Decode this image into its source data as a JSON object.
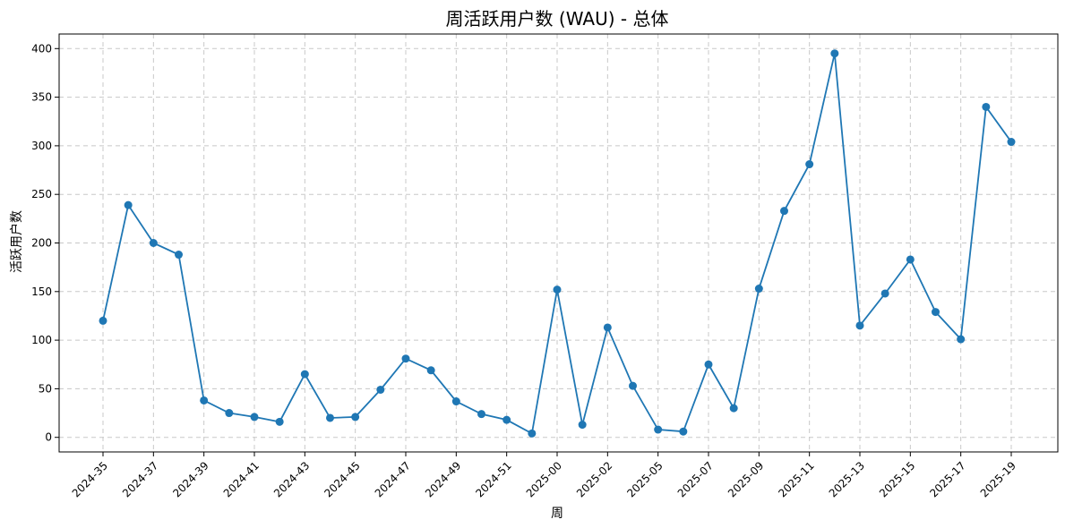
{
  "chart_data": {
    "type": "line",
    "title": "周活跃用户数 (WAU) - 总体",
    "xlabel": "周",
    "ylabel": "活跃用户数",
    "x": [
      "2024-35",
      "2024-36",
      "2024-37",
      "2024-38",
      "2024-39",
      "2024-40",
      "2024-41",
      "2024-42",
      "2024-43",
      "2024-44",
      "2024-45",
      "2024-46",
      "2024-47",
      "2024-48",
      "2024-49",
      "2024-50",
      "2024-51",
      "2024-52",
      "2025-00",
      "2025-01",
      "2025-02",
      "2025-03",
      "2025-05",
      "2025-06",
      "2025-07",
      "2025-08",
      "2025-09",
      "2025-10",
      "2025-11",
      "2025-12",
      "2025-13",
      "2025-14",
      "2025-15",
      "2025-16",
      "2025-17",
      "2025-18",
      "2025-19"
    ],
    "x_ticks": [
      "2024-35",
      "2024-37",
      "2024-39",
      "2024-41",
      "2024-43",
      "2024-45",
      "2024-47",
      "2024-49",
      "2024-51",
      "2025-00",
      "2025-02",
      "2025-05",
      "2025-07",
      "2025-09",
      "2025-11",
      "2025-13",
      "2025-15",
      "2025-17",
      "2025-19"
    ],
    "series": [
      {
        "values": [
          120,
          239,
          200,
          188,
          38,
          25,
          21,
          16,
          65,
          20,
          21,
          49,
          81,
          69,
          37,
          24,
          18,
          4,
          152,
          13,
          113,
          53,
          8,
          6,
          75,
          30,
          153,
          233,
          281,
          395,
          115,
          148,
          183,
          129,
          101,
          340,
          304
        ],
        "color": "#1f77b4"
      }
    ],
    "y_ticks": [
      0,
      50,
      100,
      150,
      200,
      250,
      300,
      350,
      400
    ],
    "ylim": [
      -15,
      415
    ],
    "grid": true
  }
}
